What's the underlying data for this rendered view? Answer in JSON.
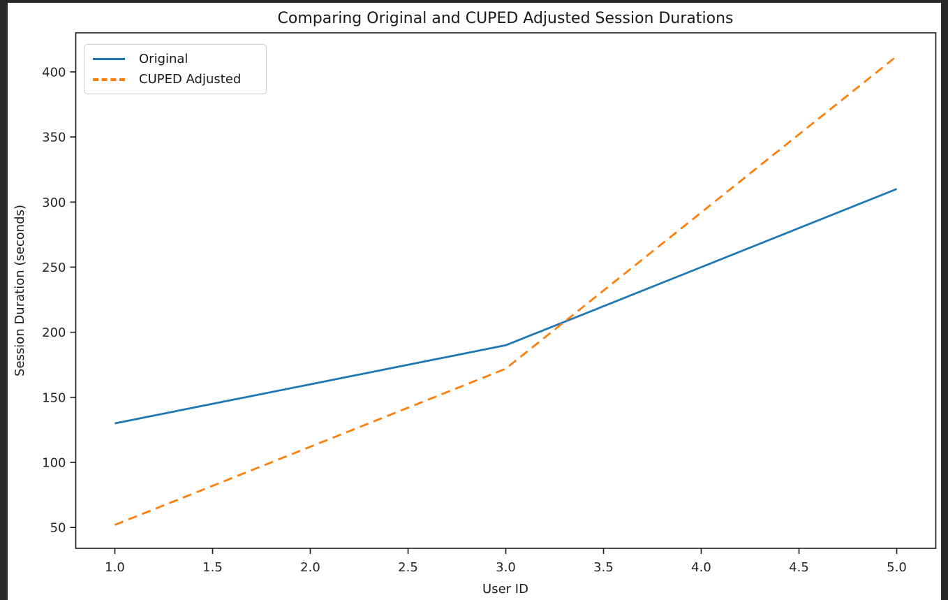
{
  "window": {
    "border_color": "#282828",
    "figure_background": "#ffffff"
  },
  "chart_data": {
    "type": "line",
    "title": "Comparing Original and CUPED Adjusted Session Durations",
    "xlabel": "User ID",
    "ylabel": "Session Duration (seconds)",
    "x": [
      1,
      2,
      3,
      4,
      5
    ],
    "series": [
      {
        "name": "Original",
        "values": [
          130,
          160,
          190,
          250,
          310
        ],
        "color": "#1f77b4",
        "style": "solid"
      },
      {
        "name": "CUPED Adjusted",
        "values": [
          52,
          112,
          172,
          292,
          412
        ],
        "color": "#ff7f0e",
        "style": "dashed"
      }
    ],
    "x_tick_labels": [
      "1.0",
      "1.5",
      "2.0",
      "2.5",
      "3.0",
      "3.5",
      "4.0",
      "4.5",
      "5.0"
    ],
    "y_tick_labels": [
      "50",
      "100",
      "150",
      "200",
      "250",
      "300",
      "350",
      "400"
    ],
    "xlim": [
      0.8,
      5.2
    ],
    "ylim": [
      34,
      430
    ],
    "grid": false,
    "legend_position": "upper left",
    "axis_color": "#1a1a1a"
  }
}
